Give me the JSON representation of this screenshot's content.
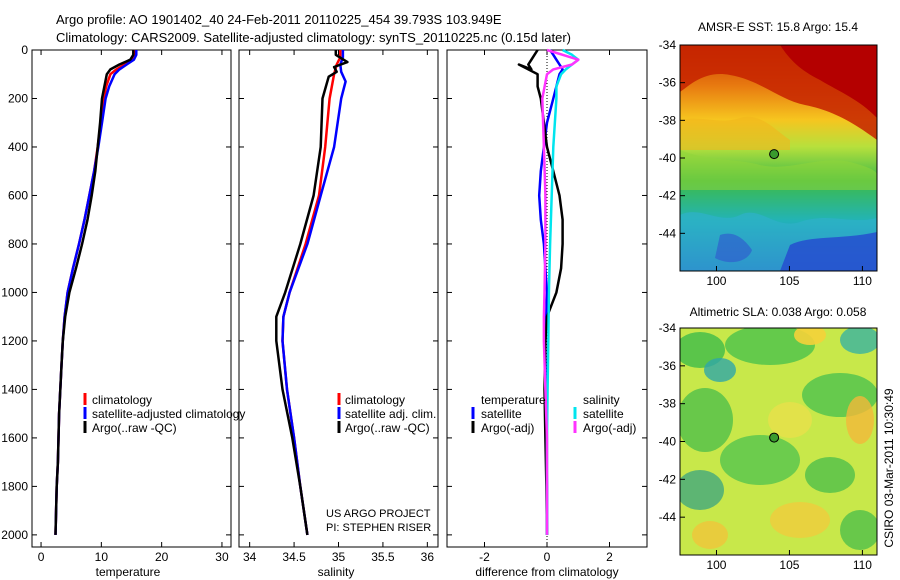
{
  "header": {
    "line1": "Argo profile: AO 1901402_40 24-Feb-2011 20110225_454 39.793S 103.949E",
    "line2": "Climatology: CARS2009. Satellite-adjusted climatology: synTS_20110225.nc (0.15d later)"
  },
  "footer": {
    "project": "US ARGO PROJECT",
    "pi": "PI: STEPHEN RISER",
    "stamp": "CSIRO 03-Mar-2011 10:30:49"
  },
  "colors": {
    "climatology": "#ff0000",
    "satellite": "#0000ff",
    "argo": "#000000",
    "sal_satellite": "#00e5ee",
    "sal_argo": "#ff33ff"
  },
  "chart_data": [
    {
      "id": "temperature",
      "type": "line",
      "xlabel": "temperature",
      "ylim": [
        2050,
        0
      ],
      "xlim": [
        -1.5,
        31.5
      ],
      "xticks": [
        0,
        10,
        20,
        30
      ],
      "yticks": [
        0,
        200,
        400,
        600,
        800,
        1000,
        1200,
        1400,
        1600,
        1800,
        2000
      ],
      "legend": [
        "climatology",
        "satellite-adjusted climatology",
        "Argo(..raw -QC)"
      ],
      "series": [
        {
          "name": "climatology",
          "color": "#ff0000",
          "points": [
            [
              15.7,
              0
            ],
            [
              15.6,
              20
            ],
            [
              15.2,
              40
            ],
            [
              13.8,
              60
            ],
            [
              12.5,
              80
            ],
            [
              11.5,
              100
            ],
            [
              10.8,
              150
            ],
            [
              10.4,
              200
            ],
            [
              9.9,
              300
            ],
            [
              9.4,
              400
            ],
            [
              8.8,
              500
            ],
            [
              8.0,
              600
            ],
            [
              7.2,
              700
            ],
            [
              6.3,
              800
            ],
            [
              5.3,
              900
            ],
            [
              4.4,
              1000
            ],
            [
              3.9,
              1100
            ],
            [
              3.6,
              1200
            ],
            [
              3.4,
              1300
            ],
            [
              3.2,
              1400
            ],
            [
              3.0,
              1500
            ],
            [
              2.9,
              1600
            ],
            [
              2.8,
              1700
            ],
            [
              2.6,
              1800
            ],
            [
              2.5,
              1900
            ],
            [
              2.4,
              2000
            ]
          ]
        },
        {
          "name": "satellite-adjusted climatology",
          "color": "#0000ff",
          "points": [
            [
              15.8,
              0
            ],
            [
              15.8,
              20
            ],
            [
              15.4,
              40
            ],
            [
              14.2,
              60
            ],
            [
              13.0,
              80
            ],
            [
              12.2,
              100
            ],
            [
              11.3,
              150
            ],
            [
              10.7,
              200
            ],
            [
              10.1,
              300
            ],
            [
              9.5,
              400
            ],
            [
              8.8,
              500
            ],
            [
              8.0,
              600
            ],
            [
              7.2,
              700
            ],
            [
              6.3,
              800
            ],
            [
              5.3,
              900
            ],
            [
              4.4,
              1000
            ],
            [
              3.9,
              1100
            ],
            [
              3.6,
              1200
            ],
            [
              3.4,
              1300
            ],
            [
              3.2,
              1400
            ],
            [
              3.0,
              1500
            ],
            [
              2.9,
              1600
            ],
            [
              2.8,
              1700
            ],
            [
              2.6,
              1800
            ],
            [
              2.5,
              1900
            ],
            [
              2.4,
              2000
            ]
          ]
        },
        {
          "name": "Argo(..raw -QC)",
          "color": "#000000",
          "points": [
            [
              15.3,
              0
            ],
            [
              15.3,
              20
            ],
            [
              14.8,
              40
            ],
            [
              13.0,
              60
            ],
            [
              11.5,
              80
            ],
            [
              10.9,
              100
            ],
            [
              10.5,
              150
            ],
            [
              10.1,
              200
            ],
            [
              9.8,
              300
            ],
            [
              9.4,
              400
            ],
            [
              9.0,
              500
            ],
            [
              8.4,
              600
            ],
            [
              7.7,
              700
            ],
            [
              6.8,
              800
            ],
            [
              5.8,
              900
            ],
            [
              4.7,
              1000
            ],
            [
              4.0,
              1100
            ],
            [
              3.6,
              1200
            ],
            [
              3.4,
              1300
            ],
            [
              3.2,
              1400
            ],
            [
              3.0,
              1500
            ],
            [
              2.9,
              1600
            ],
            [
              2.8,
              1700
            ],
            [
              2.6,
              1800
            ],
            [
              2.5,
              1900
            ],
            [
              2.4,
              2000
            ]
          ]
        }
      ]
    },
    {
      "id": "salinity",
      "type": "line",
      "xlabel": "salinity",
      "ylim": [
        2050,
        0
      ],
      "xlim": [
        33.88,
        36.12
      ],
      "xticks": [
        34,
        34.5,
        35,
        35.5,
        36
      ],
      "legend": [
        "climatology",
        "satellite adj. clim.",
        "Argo(..raw -QC)"
      ],
      "series": [
        {
          "name": "climatology",
          "color": "#ff0000",
          "points": [
            [
              35.02,
              0
            ],
            [
              35.02,
              30
            ],
            [
              34.98,
              60
            ],
            [
              34.95,
              100
            ],
            [
              34.9,
              200
            ],
            [
              34.85,
              400
            ],
            [
              34.78,
              600
            ],
            [
              34.63,
              800
            ],
            [
              34.45,
              1000
            ],
            [
              34.38,
              1100
            ],
            [
              34.37,
              1200
            ],
            [
              34.42,
              1400
            ],
            [
              34.5,
              1600
            ],
            [
              34.57,
              1800
            ],
            [
              34.65,
              2000
            ]
          ]
        },
        {
          "name": "satellite adj. clim.",
          "color": "#0000ff",
          "points": [
            [
              35.05,
              0
            ],
            [
              35.05,
              30
            ],
            [
              35.02,
              60
            ],
            [
              35.03,
              90
            ],
            [
              35.08,
              130
            ],
            [
              35.03,
              200
            ],
            [
              34.95,
              400
            ],
            [
              34.8,
              600
            ],
            [
              34.65,
              800
            ],
            [
              34.45,
              1000
            ],
            [
              34.38,
              1100
            ],
            [
              34.37,
              1200
            ],
            [
              34.42,
              1400
            ],
            [
              34.5,
              1600
            ],
            [
              34.57,
              1800
            ],
            [
              34.65,
              2000
            ]
          ]
        },
        {
          "name": "Argo(..raw -QC)",
          "color": "#000000",
          "points": [
            [
              34.97,
              0
            ],
            [
              34.97,
              20
            ],
            [
              35.1,
              50
            ],
            [
              34.95,
              70
            ],
            [
              34.98,
              90
            ],
            [
              34.89,
              110
            ],
            [
              34.82,
              200
            ],
            [
              34.8,
              400
            ],
            [
              34.72,
              600
            ],
            [
              34.57,
              800
            ],
            [
              34.4,
              1000
            ],
            [
              34.3,
              1100
            ],
            [
              34.3,
              1200
            ],
            [
              34.37,
              1400
            ],
            [
              34.48,
              1600
            ],
            [
              34.57,
              1800
            ],
            [
              34.65,
              2000
            ]
          ]
        }
      ]
    },
    {
      "id": "difference",
      "type": "line",
      "xlabel": "difference from climatology",
      "ylim": [
        2050,
        0
      ],
      "xlim": [
        -3.2,
        3.2
      ],
      "xticks": [
        -2,
        0,
        2
      ],
      "legend_groups": {
        "temperature": [
          "satellite",
          "Argo(-adj)"
        ],
        "salinity": [
          "satellite",
          "Argo(-adj)"
        ]
      },
      "series": [
        {
          "name": "temperature satellite",
          "color": "#0000ff",
          "points": [
            [
              0.1,
              0
            ],
            [
              0.2,
              20
            ],
            [
              0.3,
              40
            ],
            [
              0.4,
              60
            ],
            [
              0.5,
              80
            ],
            [
              0.4,
              100
            ],
            [
              0.2,
              200
            ],
            [
              0.0,
              300
            ],
            [
              -0.1,
              400
            ],
            [
              -0.2,
              500
            ],
            [
              -0.25,
              600
            ],
            [
              -0.2,
              700
            ],
            [
              -0.1,
              800
            ],
            [
              -0.05,
              900
            ],
            [
              0.0,
              1000
            ],
            [
              -0.05,
              1200
            ],
            [
              -0.05,
              1400
            ],
            [
              -0.03,
              1600
            ],
            [
              0.0,
              1800
            ],
            [
              0.0,
              2000
            ]
          ]
        },
        {
          "name": "temperature Argo(-adj)",
          "color": "#000000",
          "points": [
            [
              -0.3,
              0
            ],
            [
              -0.4,
              20
            ],
            [
              -0.5,
              40
            ],
            [
              -0.6,
              60
            ],
            [
              -0.5,
              80
            ],
            [
              -0.9,
              60
            ],
            [
              -0.3,
              100
            ],
            [
              -0.3,
              150
            ],
            [
              -0.2,
              200
            ],
            [
              -0.1,
              300
            ],
            [
              0.0,
              400
            ],
            [
              0.2,
              500
            ],
            [
              0.4,
              600
            ],
            [
              0.5,
              700
            ],
            [
              0.5,
              800
            ],
            [
              0.45,
              900
            ],
            [
              0.3,
              1000
            ],
            [
              0.0,
              1100
            ],
            [
              -0.05,
              1200
            ],
            [
              -0.08,
              1400
            ],
            [
              -0.05,
              1600
            ],
            [
              -0.02,
              1800
            ],
            [
              0.0,
              2000
            ]
          ]
        },
        {
          "name": "salinity satellite",
          "color": "#00e5ee",
          "points": [
            [
              0.5,
              0
            ],
            [
              0.8,
              20
            ],
            [
              1.0,
              40
            ],
            [
              0.8,
              60
            ],
            [
              0.6,
              80
            ],
            [
              0.45,
              100
            ],
            [
              0.3,
              150
            ],
            [
              0.3,
              200
            ],
            [
              0.2,
              400
            ],
            [
              0.15,
              600
            ],
            [
              0.1,
              800
            ],
            [
              0.06,
              1000
            ],
            [
              0.04,
              1200
            ],
            [
              0.02,
              1400
            ],
            [
              0.0,
              1600
            ],
            [
              0.0,
              1800
            ],
            [
              0.0,
              2000
            ]
          ]
        },
        {
          "name": "salinity Argo(-adj)",
          "color": "#ff33ff",
          "points": [
            [
              0.0,
              0
            ],
            [
              0.5,
              20
            ],
            [
              1.0,
              40
            ],
            [
              0.8,
              60
            ],
            [
              0.2,
              80
            ],
            [
              0.0,
              100
            ],
            [
              -0.15,
              200
            ],
            [
              -0.1,
              400
            ],
            [
              -0.05,
              600
            ],
            [
              -0.05,
              800
            ],
            [
              -0.08,
              1000
            ],
            [
              -0.1,
              1100
            ],
            [
              -0.1,
              1200
            ],
            [
              -0.05,
              1400
            ],
            [
              0.0,
              1600
            ],
            [
              0.0,
              1800
            ],
            [
              0.0,
              2000
            ]
          ]
        }
      ]
    },
    {
      "id": "sst_map",
      "type": "heatmap",
      "title": "AMSR-E SST: 15.8 Argo: 15.4",
      "xlim": [
        97.5,
        111
      ],
      "ylim": [
        -46,
        -34
      ],
      "xticks": [
        100,
        105,
        110
      ],
      "yticks": [
        -34,
        -36,
        -38,
        -40,
        -42,
        -44
      ],
      "marker": {
        "lon": 103.949,
        "lat": -39.793
      }
    },
    {
      "id": "sla_map",
      "type": "heatmap",
      "title": "Altimetric SLA: 0.038 Argo: 0.058",
      "xlim": [
        97.5,
        111
      ],
      "ylim": [
        -46,
        -34
      ],
      "xticks": [
        100,
        105,
        110
      ],
      "yticks": [
        -34,
        -36,
        -38,
        -40,
        -42,
        -44
      ],
      "marker": {
        "lon": 103.949,
        "lat": -39.793
      }
    }
  ]
}
